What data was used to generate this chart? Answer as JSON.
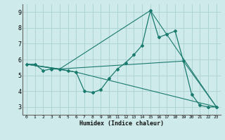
{
  "xlabel": "Humidex (Indice chaleur)",
  "ylabel": "",
  "bg_color": "#ceeaea",
  "grid_color": "#afd4d4",
  "line_color": "#1a7a6e",
  "xlim": [
    -0.5,
    23.5
  ],
  "ylim": [
    2.5,
    9.5
  ],
  "xticks": [
    0,
    1,
    2,
    3,
    4,
    5,
    6,
    7,
    8,
    9,
    10,
    11,
    12,
    13,
    14,
    15,
    16,
    17,
    18,
    19,
    20,
    21,
    22,
    23
  ],
  "yticks": [
    3,
    4,
    5,
    6,
    7,
    8,
    9
  ],
  "series": [
    {
      "x": [
        0,
        1,
        2,
        3,
        4,
        5,
        6,
        7,
        8,
        9,
        10,
        11,
        12,
        13,
        14,
        15,
        16,
        17,
        18,
        19,
        20,
        21,
        22,
        23
      ],
      "y": [
        5.7,
        5.7,
        5.3,
        5.4,
        5.4,
        5.3,
        5.2,
        4.0,
        3.9,
        4.1,
        4.8,
        5.4,
        5.8,
        6.3,
        6.9,
        9.1,
        7.4,
        7.6,
        7.8,
        5.9,
        3.8,
        3.1,
        3.0,
        3.0
      ]
    },
    {
      "x": [
        0,
        4,
        15,
        23
      ],
      "y": [
        5.7,
        5.4,
        9.1,
        3.0
      ]
    },
    {
      "x": [
        0,
        4,
        19,
        23
      ],
      "y": [
        5.7,
        5.4,
        5.9,
        3.0
      ]
    },
    {
      "x": [
        0,
        6,
        23
      ],
      "y": [
        5.7,
        5.2,
        3.0
      ]
    }
  ]
}
